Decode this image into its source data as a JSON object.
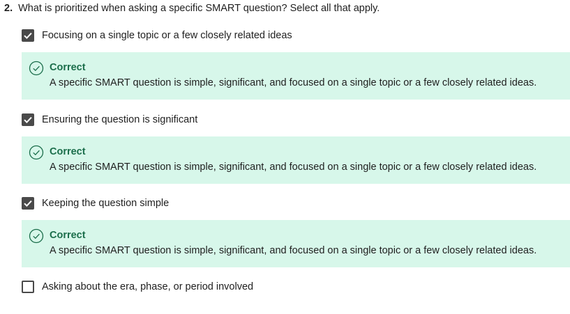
{
  "question": {
    "number": "2.",
    "text": "What is prioritized when asking a specific SMART question? Select all that apply."
  },
  "options": [
    {
      "label": "Focusing on a single topic or a few closely related ideas",
      "checked": true,
      "feedback": {
        "status": "Correct",
        "text": "A specific SMART question is simple, significant, and focused on a single topic or a few closely related ideas."
      }
    },
    {
      "label": "Ensuring the question is significant",
      "checked": true,
      "feedback": {
        "status": "Correct",
        "text": "A specific SMART question is simple, significant, and focused on a single topic or a few closely related ideas."
      }
    },
    {
      "label": "Keeping the question simple",
      "checked": true,
      "feedback": {
        "status": "Correct",
        "text": "A specific SMART question is simple, significant, and focused on a single topic or a few closely related ideas."
      }
    },
    {
      "label": "Asking about the era, phase, or period involved",
      "checked": false
    }
  ],
  "colors": {
    "feedback_background": "#d7f7ea",
    "correct_accent": "#1b6e4b",
    "checkbox_fill": "#4a4a4a"
  },
  "icons": {
    "checked": "checkmark-icon",
    "feedback": "check-circle-icon"
  }
}
